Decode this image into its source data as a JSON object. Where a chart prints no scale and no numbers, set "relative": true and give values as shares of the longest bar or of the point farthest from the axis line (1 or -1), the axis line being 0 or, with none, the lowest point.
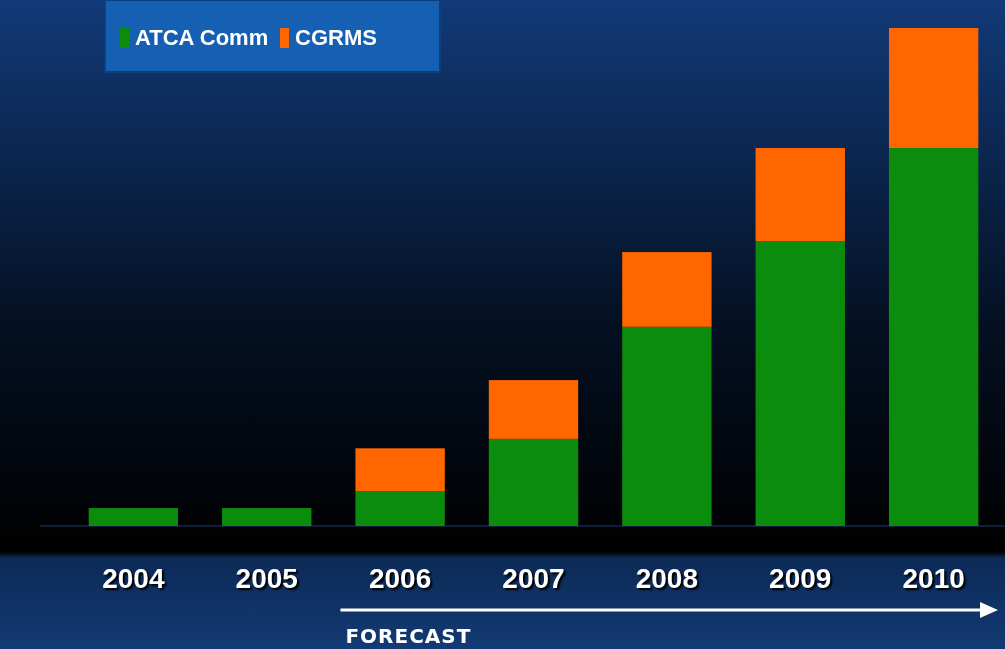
{
  "chart_data": {
    "type": "bar",
    "relative": true,
    "stacked": true,
    "legend": "top left",
    "categories": [
      "2004",
      "2005",
      "2006",
      "2007",
      "2008",
      "2009",
      "2010"
    ],
    "series": [
      {
        "name": "ATCA Comm",
        "color": "#0c8c0c",
        "values": [
          0.036,
          0.036,
          0.07,
          0.175,
          0.4,
          0.572,
          0.759
        ]
      },
      {
        "name": "CGRMS",
        "color": "#ff6600",
        "values": [
          null,
          null,
          0.086,
          0.118,
          0.15,
          0.187,
          0.241
        ]
      }
    ],
    "annotations": [
      "FORECAST"
    ]
  }
}
